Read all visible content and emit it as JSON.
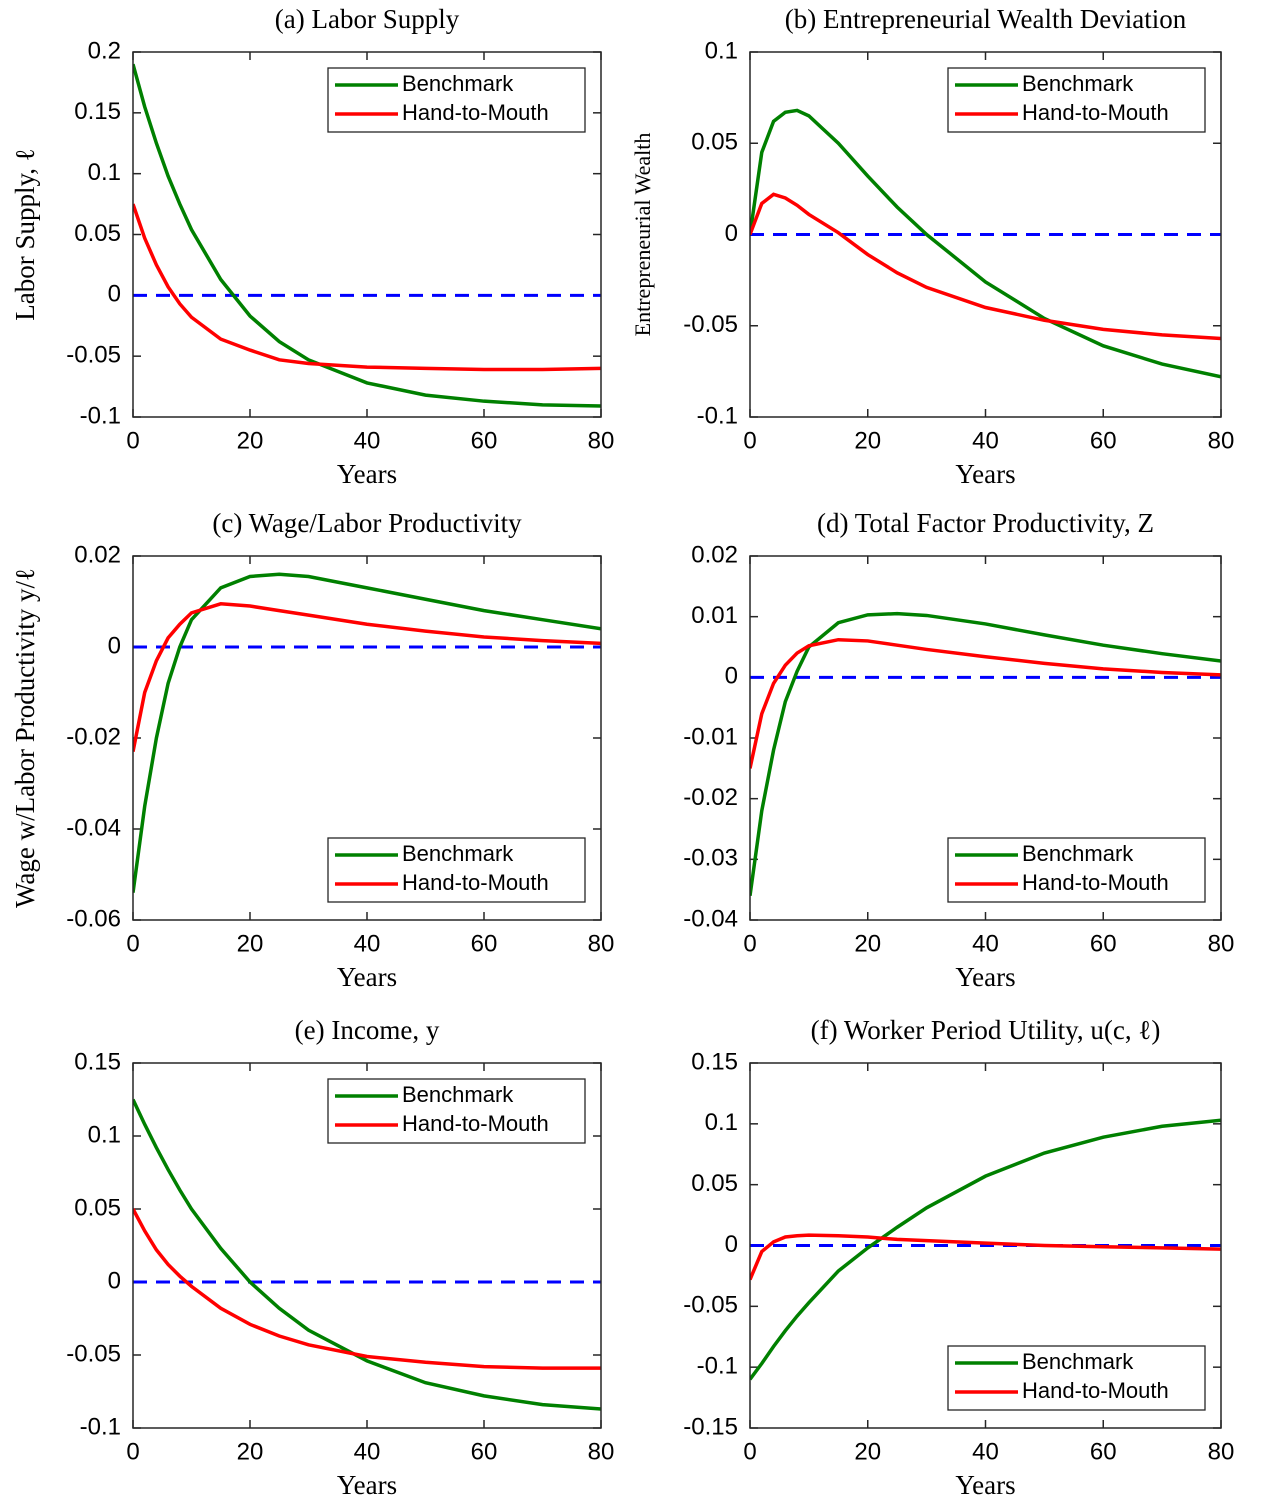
{
  "chart_data": [
    {
      "type": "line",
      "title": "(a) Labor Supply",
      "xlabel": "Years",
      "ylabel": "Labor Supply, ℓ",
      "x": [
        0,
        2,
        4,
        6,
        8,
        10,
        15,
        20,
        25,
        30,
        40,
        50,
        60,
        70,
        80
      ],
      "series": [
        {
          "name": "Benchmark",
          "color": "#008000",
          "values": [
            0.19,
            0.155,
            0.125,
            0.098,
            0.075,
            0.054,
            0.013,
            -0.017,
            -0.038,
            -0.053,
            -0.072,
            -0.082,
            -0.087,
            -0.09,
            -0.091
          ]
        },
        {
          "name": "Hand-to-Mouth",
          "color": "#ff0000",
          "values": [
            0.075,
            0.047,
            0.025,
            0.007,
            -0.007,
            -0.018,
            -0.036,
            -0.045,
            -0.053,
            -0.056,
            -0.059,
            -0.06,
            -0.061,
            -0.061,
            -0.06
          ]
        }
      ],
      "hline": {
        "y": 0,
        "color": "#0000ff"
      },
      "xlim": [
        0,
        80
      ],
      "xticks": [
        0,
        20,
        40,
        60,
        80
      ],
      "ylim": [
        -0.1,
        0.2
      ],
      "yticks": [
        -0.1,
        -0.05,
        0,
        0.05,
        0.1,
        0.15,
        0.2
      ],
      "legend": "upper right"
    },
    {
      "type": "line",
      "title": "(b) Entrepreneurial Wealth Deviation",
      "xlabel": "Years",
      "ylabel": "Entrepreneurial Wealth",
      "x": [
        0,
        2,
        4,
        6,
        8,
        10,
        15,
        20,
        25,
        30,
        40,
        50,
        60,
        70,
        80
      ],
      "series": [
        {
          "name": "Benchmark",
          "color": "#008000",
          "values": [
            0,
            0.045,
            0.062,
            0.067,
            0.068,
            0.065,
            0.05,
            0.032,
            0.015,
            0,
            -0.026,
            -0.046,
            -0.061,
            -0.071,
            -0.078
          ]
        },
        {
          "name": "Hand-to-Mouth",
          "color": "#ff0000",
          "values": [
            0,
            0.017,
            0.022,
            0.02,
            0.016,
            0.011,
            0.001,
            -0.011,
            -0.021,
            -0.029,
            -0.04,
            -0.047,
            -0.052,
            -0.055,
            -0.057
          ]
        }
      ],
      "hline": {
        "y": 0,
        "color": "#0000ff"
      },
      "xlim": [
        0,
        80
      ],
      "xticks": [
        0,
        20,
        40,
        60,
        80
      ],
      "ylim": [
        -0.1,
        0.1
      ],
      "yticks": [
        -0.1,
        -0.05,
        0,
        0.05,
        0.1
      ],
      "legend": "upper right"
    },
    {
      "type": "line",
      "title": "(c) Wage/Labor Productivity",
      "xlabel": "Years",
      "ylabel": "Wage w/Labor Productivity y/ℓ",
      "x": [
        0,
        2,
        4,
        6,
        8,
        10,
        15,
        20,
        25,
        30,
        40,
        50,
        60,
        70,
        80
      ],
      "series": [
        {
          "name": "Benchmark",
          "color": "#008000",
          "values": [
            -0.054,
            -0.035,
            -0.02,
            -0.008,
            0,
            0.006,
            0.013,
            0.0155,
            0.016,
            0.0155,
            0.013,
            0.0105,
            0.008,
            0.006,
            0.004
          ]
        },
        {
          "name": "Hand-to-Mouth",
          "color": "#ff0000",
          "values": [
            -0.023,
            -0.01,
            -0.003,
            0.002,
            0.005,
            0.0075,
            0.0095,
            0.009,
            0.008,
            0.007,
            0.005,
            0.0035,
            0.0022,
            0.0014,
            0.0008
          ]
        }
      ],
      "hline": {
        "y": 0,
        "color": "#0000ff"
      },
      "xlim": [
        0,
        80
      ],
      "xticks": [
        0,
        20,
        40,
        60,
        80
      ],
      "ylim": [
        -0.06,
        0.02
      ],
      "yticks": [
        -0.06,
        -0.04,
        -0.02,
        0,
        0.02
      ],
      "legend": "lower right"
    },
    {
      "type": "line",
      "title": "(d) Total Factor Productivity, Z",
      "xlabel": "Years",
      "x": [
        0,
        2,
        4,
        6,
        8,
        10,
        15,
        20,
        25,
        30,
        40,
        50,
        60,
        70,
        80
      ],
      "series": [
        {
          "name": "Benchmark",
          "color": "#008000",
          "values": [
            -0.036,
            -0.022,
            -0.012,
            -0.004,
            0.001,
            0.005,
            0.009,
            0.0103,
            0.0105,
            0.0102,
            0.0088,
            0.007,
            0.0053,
            0.0039,
            0.0027
          ]
        },
        {
          "name": "Hand-to-Mouth",
          "color": "#ff0000",
          "values": [
            -0.015,
            -0.006,
            -0.001,
            0.002,
            0.004,
            0.0052,
            0.0062,
            0.006,
            0.0053,
            0.0046,
            0.0034,
            0.0023,
            0.0014,
            0.0008,
            0.0004
          ]
        }
      ],
      "hline": {
        "y": 0,
        "color": "#0000ff"
      },
      "xlim": [
        0,
        80
      ],
      "xticks": [
        0,
        20,
        40,
        60,
        80
      ],
      "ylim": [
        -0.04,
        0.02
      ],
      "yticks": [
        -0.04,
        -0.03,
        -0.02,
        -0.01,
        0,
        0.01,
        0.02
      ],
      "legend": "lower right"
    },
    {
      "type": "line",
      "title": "(e) Income, y",
      "xlabel": "Years",
      "x": [
        0,
        2,
        4,
        6,
        8,
        10,
        15,
        20,
        25,
        30,
        40,
        50,
        60,
        70,
        80
      ],
      "series": [
        {
          "name": "Benchmark",
          "color": "#008000",
          "values": [
            0.125,
            0.108,
            0.092,
            0.077,
            0.063,
            0.05,
            0.023,
            0,
            -0.018,
            -0.033,
            -0.054,
            -0.069,
            -0.078,
            -0.084,
            -0.087
          ]
        },
        {
          "name": "Hand-to-Mouth",
          "color": "#ff0000",
          "values": [
            0.05,
            0.035,
            0.022,
            0.012,
            0.004,
            -0.003,
            -0.018,
            -0.029,
            -0.037,
            -0.043,
            -0.051,
            -0.055,
            -0.058,
            -0.059,
            -0.059
          ]
        }
      ],
      "hline": {
        "y": 0,
        "color": "#0000ff"
      },
      "xlim": [
        0,
        80
      ],
      "xticks": [
        0,
        20,
        40,
        60,
        80
      ],
      "ylim": [
        -0.1,
        0.15
      ],
      "yticks": [
        -0.1,
        -0.05,
        0,
        0.05,
        0.1,
        0.15
      ],
      "legend": "upper right"
    },
    {
      "type": "line",
      "title": "(f) Worker Period Utility, u(c, ℓ)",
      "xlabel": "Years",
      "x": [
        0,
        2,
        4,
        6,
        8,
        10,
        15,
        20,
        25,
        30,
        40,
        50,
        60,
        70,
        80
      ],
      "series": [
        {
          "name": "Benchmark",
          "color": "#008000",
          "values": [
            -0.11,
            -0.097,
            -0.083,
            -0.07,
            -0.058,
            -0.047,
            -0.021,
            -0.002,
            0.015,
            0.031,
            0.057,
            0.076,
            0.089,
            0.098,
            0.103
          ]
        },
        {
          "name": "Hand-to-Mouth",
          "color": "#ff0000",
          "values": [
            -0.028,
            -0.005,
            0.003,
            0.007,
            0.008,
            0.0085,
            0.008,
            0.007,
            0.005,
            0.004,
            0.002,
            0,
            -0.001,
            -0.002,
            -0.003
          ]
        }
      ],
      "hline": {
        "y": 0,
        "color": "#0000ff"
      },
      "xlim": [
        0,
        80
      ],
      "xticks": [
        0,
        20,
        40,
        60,
        80
      ],
      "ylim": [
        -0.15,
        0.15
      ],
      "yticks": [
        -0.15,
        -0.1,
        -0.05,
        0,
        0.05,
        0.1,
        0.15
      ],
      "legend": "lower right"
    }
  ]
}
